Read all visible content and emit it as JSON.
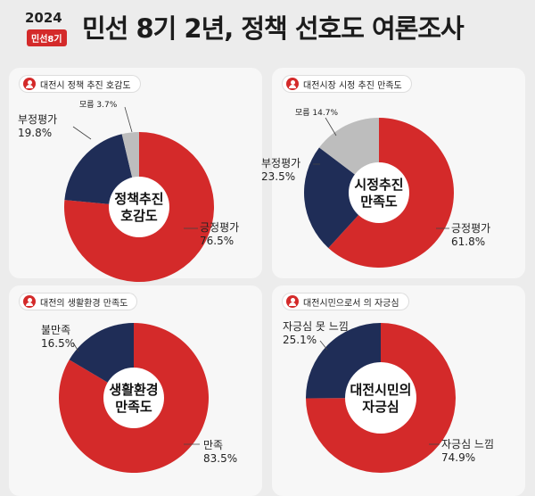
{
  "header": {
    "year": "2024",
    "badge": "민선8기",
    "title": "민선 8기 2년, 정책 선호도 여론조사"
  },
  "colors": {
    "positive": "#d42a2a",
    "negative": "#1f2d57",
    "unknown": "#bdbdbd"
  },
  "chart_data": [
    {
      "type": "pie",
      "title": "대전시 정책 추진 호감도",
      "center": [
        "정책추진",
        "호감도"
      ],
      "slices": [
        {
          "label": "긍정평가",
          "value": 76.5,
          "value_text": "76.5%",
          "color": "#d42a2a"
        },
        {
          "label": "부정평가",
          "value": 19.8,
          "value_text": "19.8%",
          "color": "#1f2d57"
        },
        {
          "label": "모름",
          "value": 3.7,
          "value_text": "3.7%",
          "color": "#bdbdbd"
        }
      ]
    },
    {
      "type": "pie",
      "title": "대전시장 시정 추진 만족도",
      "center": [
        "시정추진",
        "만족도"
      ],
      "slices": [
        {
          "label": "긍정평가",
          "value": 61.8,
          "value_text": "61.8%",
          "color": "#d42a2a"
        },
        {
          "label": "부정평가",
          "value": 23.5,
          "value_text": "23.5%",
          "color": "#1f2d57"
        },
        {
          "label": "모름",
          "value": 14.7,
          "value_text": "14.7%",
          "color": "#bdbdbd"
        }
      ]
    },
    {
      "type": "pie",
      "title": "대전의 생활환경 만족도",
      "center": [
        "생활환경",
        "만족도"
      ],
      "slices": [
        {
          "label": "만족",
          "value": 83.5,
          "value_text": "83.5%",
          "color": "#d42a2a"
        },
        {
          "label": "불만족",
          "value": 16.5,
          "value_text": "16.5%",
          "color": "#1f2d57"
        }
      ]
    },
    {
      "type": "pie",
      "title": "대전시민으로서 의 자긍심",
      "center": [
        "대전시민의",
        "자긍심"
      ],
      "slices": [
        {
          "label": "자긍심 느낌",
          "value": 74.9,
          "value_text": "74.9%",
          "color": "#d42a2a"
        },
        {
          "label": "자긍심 못 느낌",
          "value": 25.1,
          "value_text": "25.1%",
          "color": "#1f2d57"
        }
      ]
    }
  ]
}
